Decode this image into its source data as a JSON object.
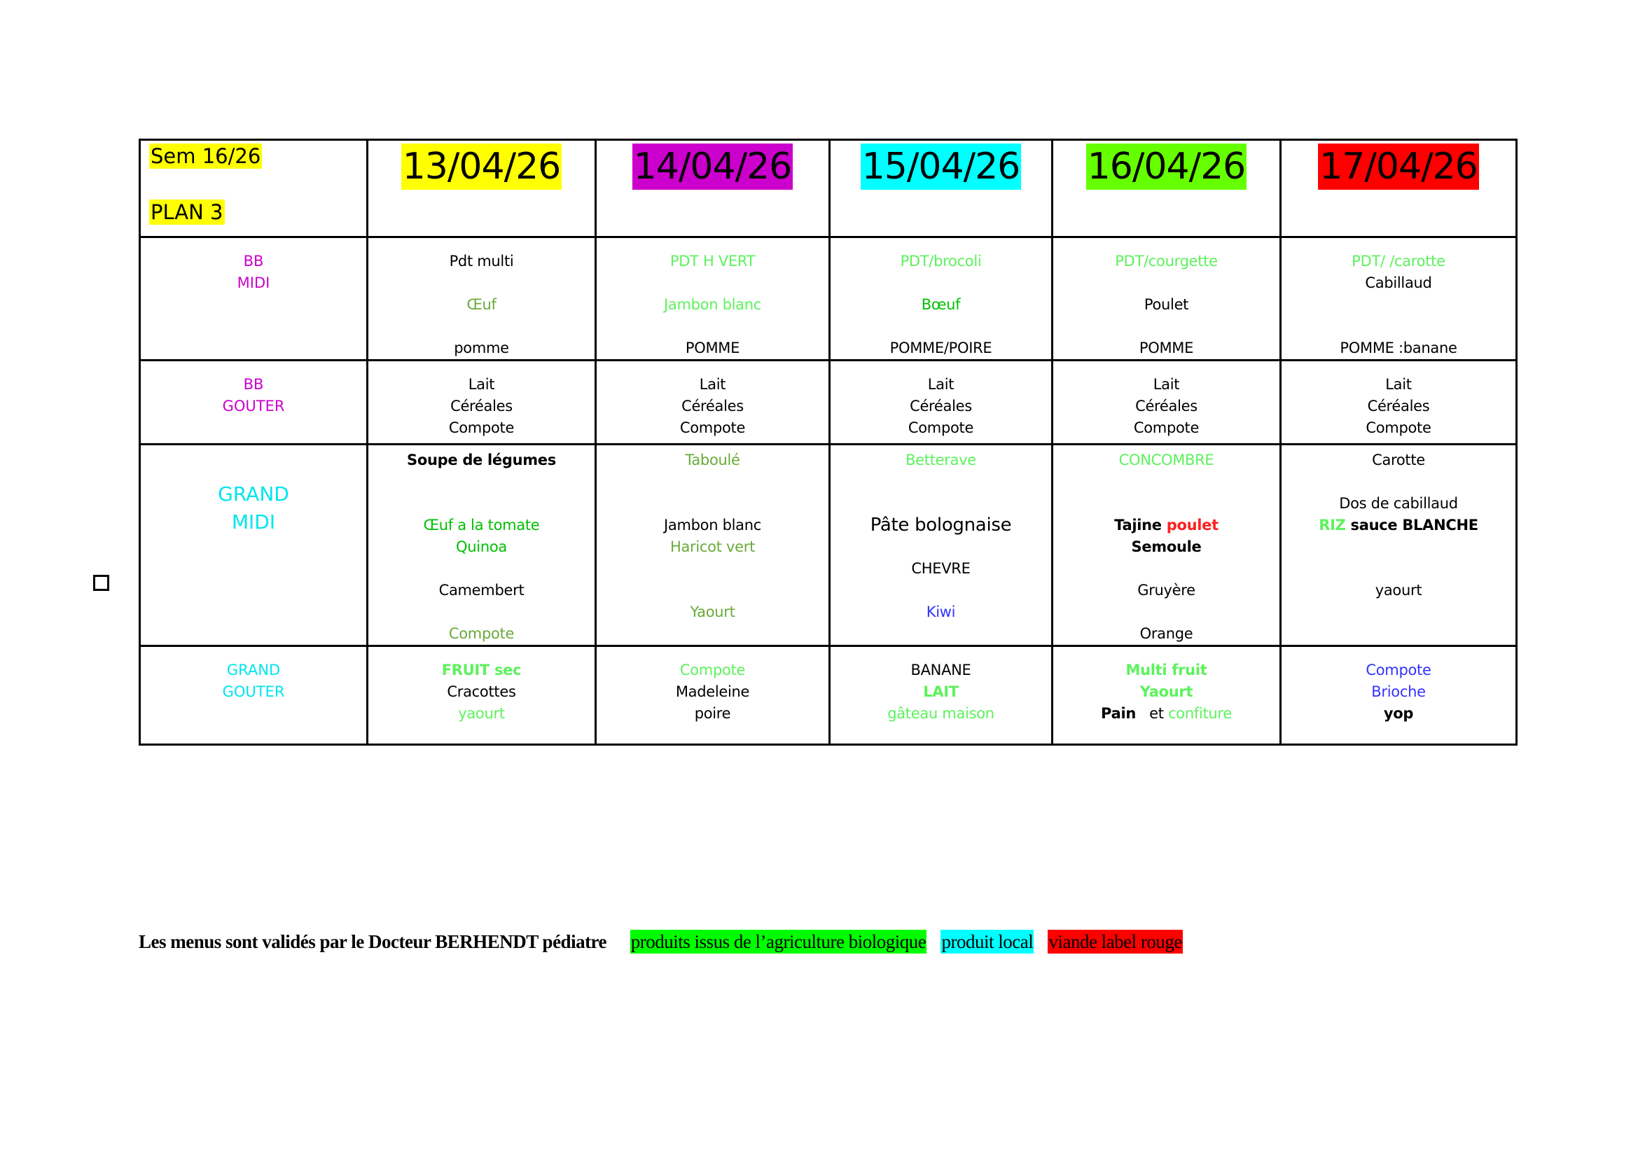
{
  "colors": {
    "K": "#000000",
    "L": "#5cf25c",
    "M": "#00c000",
    "O": "#6aaa3a",
    "B": "#3333ff",
    "R": "#ff2020",
    "magenta": "#cc00cc",
    "cyan": "#00e5ee"
  },
  "header": {
    "week": "Sem 16/26",
    "plan": "PLAN 3",
    "days": [
      {
        "date": "13/04/26",
        "bg": "#ffff00"
      },
      {
        "date": "14/04/26",
        "bg": "#cc00cc"
      },
      {
        "date": "15/04/26",
        "bg": "#00ffff"
      },
      {
        "date": "16/04/26",
        "bg": "#66ff00"
      },
      {
        "date": "17/04/26",
        "bg": "#ff0000"
      }
    ]
  },
  "rows": [
    {
      "label": [
        "BB",
        "MIDI"
      ],
      "label_color": "#cc00cc",
      "cells": [
        [
          [
            {
              "t": "Pdt multi",
              "c": "K"
            }
          ],
          [],
          [
            {
              "t": "Œuf",
              "c": "O"
            }
          ],
          [],
          [
            {
              "t": "pomme",
              "c": "K"
            }
          ]
        ],
        [
          [
            {
              "t": "PDT H VERT",
              "c": "L"
            }
          ],
          [],
          [
            {
              "t": "Jambon blanc",
              "c": "L"
            }
          ],
          [],
          [
            {
              "t": "POMME",
              "c": "K"
            }
          ]
        ],
        [
          [
            {
              "t": "PDT/brocoli",
              "c": "L"
            }
          ],
          [],
          [
            {
              "t": "Bœuf",
              "c": "M"
            }
          ],
          [],
          [
            {
              "t": "POMME/POIRE",
              "c": "K"
            }
          ]
        ],
        [
          [
            {
              "t": "PDT/courgette",
              "c": "L"
            }
          ],
          [],
          [
            {
              "t": "Poulet",
              "c": "K"
            }
          ],
          [],
          [
            {
              "t": "POMME",
              "c": "K"
            }
          ]
        ],
        [
          [
            {
              "t": "PDT/ /carotte",
              "c": "L"
            }
          ],
          [
            {
              "t": "Cabillaud",
              "c": "K"
            }
          ],
          [],
          [],
          [
            {
              "t": "POMME :banane",
              "c": "K"
            }
          ]
        ]
      ]
    },
    {
      "label": [
        "BB",
        "GOUTER"
      ],
      "label_color": "#cc00cc",
      "cells": [
        [
          [
            {
              "t": "Lait",
              "c": "K"
            }
          ],
          [
            {
              "t": "Céréales",
              "c": "K"
            }
          ],
          [
            {
              "t": "Compote",
              "c": "K"
            }
          ]
        ],
        [
          [
            {
              "t": "Lait",
              "c": "K"
            }
          ],
          [
            {
              "t": "Céréales",
              "c": "K"
            }
          ],
          [
            {
              "t": "Compote",
              "c": "K"
            }
          ]
        ],
        [
          [
            {
              "t": "Lait",
              "c": "K"
            }
          ],
          [
            {
              "t": "Céréales",
              "c": "K"
            }
          ],
          [
            {
              "t": "Compote",
              "c": "K"
            }
          ]
        ],
        [
          [
            {
              "t": "Lait",
              "c": "K"
            }
          ],
          [
            {
              "t": "Céréales",
              "c": "K"
            }
          ],
          [
            {
              "t": "Compote",
              "c": "K"
            }
          ]
        ],
        [
          [
            {
              "t": "Lait",
              "c": "K"
            }
          ],
          [
            {
              "t": "Céréales",
              "c": "K"
            }
          ],
          [
            {
              "t": "Compote",
              "c": "K"
            }
          ]
        ]
      ]
    },
    {
      "label": [
        "GRAND",
        "MIDI"
      ],
      "label_color": "#00e5ee",
      "large": true,
      "cells": [
        [
          [
            {
              "t": "Soupe de légumes",
              "c": "K",
              "b": true
            }
          ],
          [],
          [],
          [
            {
              "t": "Œuf a la tomate",
              "c": "M"
            }
          ],
          [
            {
              "t": "Quinoa",
              "c": "M"
            }
          ],
          [],
          [
            {
              "t": "Camembert",
              "c": "K"
            }
          ],
          [],
          [
            {
              "t": "Compote",
              "c": "O"
            }
          ]
        ],
        [
          [
            {
              "t": "Taboulé",
              "c": "O"
            }
          ],
          [],
          [],
          [
            {
              "t": "Jambon blanc",
              "c": "K"
            }
          ],
          [
            {
              "t": "Haricot vert",
              "c": "O"
            }
          ],
          [],
          [],
          [
            {
              "t": "Yaourt",
              "c": "O"
            }
          ]
        ],
        [
          [
            {
              "t": "Betterave",
              "c": "L"
            }
          ],
          [],
          [],
          [
            {
              "t": "Pâte bolognaise",
              "c": "K",
              "big": true
            }
          ],
          [],
          [
            {
              "t": "CHEVRE",
              "c": "K"
            }
          ],
          [],
          [
            {
              "t": "Kiwi",
              "c": "B"
            }
          ]
        ],
        [
          [
            {
              "t": "CONCOMBRE",
              "c": "L"
            }
          ],
          [],
          [],
          [
            {
              "t": "Tajine ",
              "c": "K",
              "b": true
            },
            {
              "t": "poulet",
              "c": "R",
              "b": true
            }
          ],
          [
            {
              "t": "Semoule",
              "c": "K",
              "b": true
            }
          ],
          [],
          [
            {
              "t": "Gruyère",
              "c": "K"
            }
          ],
          [],
          [
            {
              "t": "Orange",
              "c": "K"
            }
          ]
        ],
        [
          [
            {
              "t": "Carotte",
              "c": "K"
            }
          ],
          [],
          [
            {
              "t": "Dos de cabillaud",
              "c": "K"
            }
          ],
          [
            {
              "t": "RIZ",
              "c": "L",
              "b": true
            },
            {
              "t": " sauce BLANCHE",
              "c": "K",
              "b": true
            }
          ],
          [],
          [],
          [
            {
              "t": "yaourt",
              "c": "K"
            }
          ]
        ]
      ]
    },
    {
      "label": [
        "GRAND",
        "GOUTER"
      ],
      "label_color": "#00e5ee",
      "cells": [
        [
          [
            {
              "t": "FRUIT sec",
              "c": "L",
              "b": true
            }
          ],
          [
            {
              "t": "Cracottes",
              "c": "K"
            }
          ],
          [
            {
              "t": "yaourt",
              "c": "L"
            }
          ]
        ],
        [
          [
            {
              "t": "Compote",
              "c": "L"
            }
          ],
          [
            {
              "t": "Madeleine",
              "c": "K"
            }
          ],
          [
            {
              "t": "poire",
              "c": "K"
            }
          ]
        ],
        [
          [
            {
              "t": "BANANE",
              "c": "K"
            }
          ],
          [
            {
              "t": "LAIT",
              "c": "L",
              "b": true
            }
          ],
          [
            {
              "t": "gâteau maison",
              "c": "L"
            }
          ]
        ],
        [
          [
            {
              "t": "Multi fruit",
              "c": "L",
              "b": true
            }
          ],
          [
            {
              "t": "Yaourt",
              "c": "L",
              "b": true
            }
          ],
          [
            {
              "t": "Pain",
              "c": "K",
              "b": true
            },
            {
              "t": "   et ",
              "c": "K"
            },
            {
              "t": "confiture",
              "c": "L"
            }
          ]
        ],
        [
          [
            {
              "t": "Compote",
              "c": "B"
            }
          ],
          [
            {
              "t": "Brioche",
              "c": "B"
            }
          ],
          [
            {
              "t": "yop",
              "c": "K",
              "b": true
            }
          ]
        ]
      ]
    }
  ],
  "footer": {
    "note": "Les menus sont validés par le Docteur BERHENDT pédiatre",
    "legend": [
      {
        "label": "produits issus de l’agriculture biologique",
        "bg": "#00ff00"
      },
      {
        "label": "produit local",
        "bg": "#00ffff"
      },
      {
        "label": "viande label rouge",
        "bg": "#ff0000"
      }
    ]
  }
}
